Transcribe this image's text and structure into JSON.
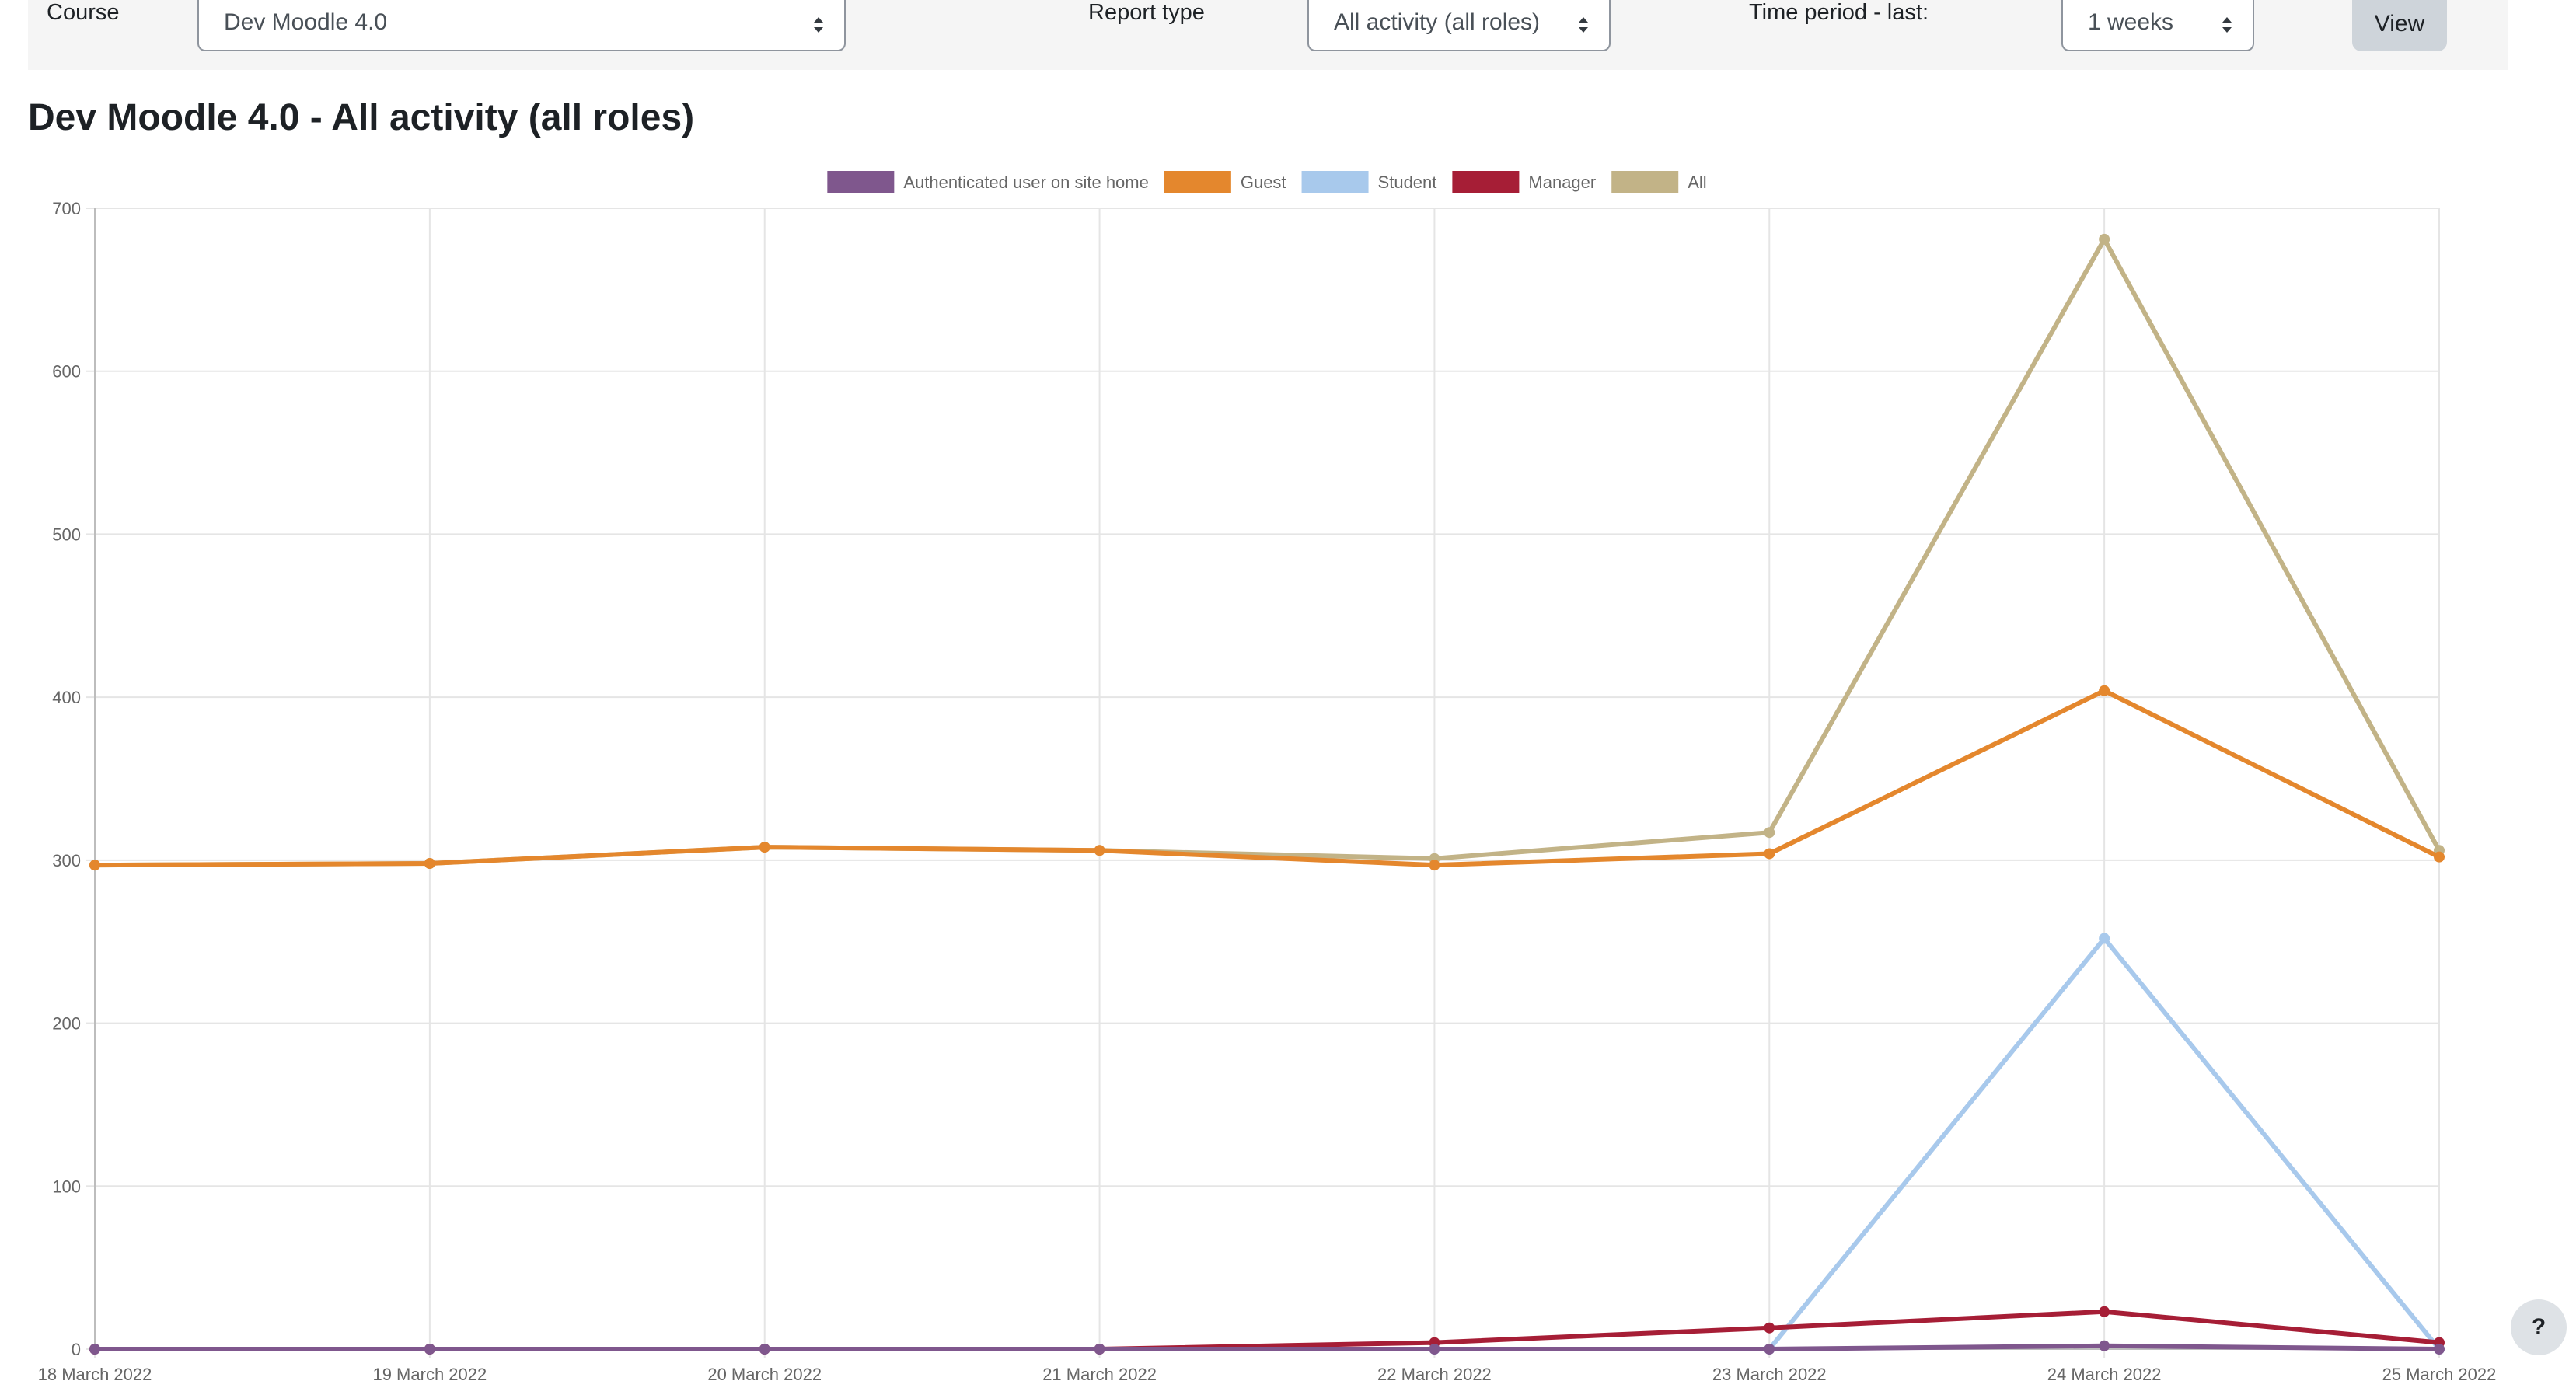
{
  "filters": {
    "course_label": "Course",
    "course_value": "Dev Moodle 4.0",
    "report_type_label": "Report type",
    "report_type_value": "All activity (all roles)",
    "time_period_label": "Time period - last:",
    "time_period_value": "1 weeks",
    "view_label": "View"
  },
  "report_title": "Dev Moodle 4.0 - All activity (all roles)",
  "help_label": "?",
  "chart_data": {
    "type": "line",
    "title": "",
    "xlabel": "",
    "ylabel": "",
    "categories": [
      "18 March 2022",
      "19 March 2022",
      "20 March 2022",
      "21 March 2022",
      "22 March 2022",
      "23 March 2022",
      "24 March 2022",
      "25 March 2022"
    ],
    "ylim": [
      0,
      700
    ],
    "yticks": [
      0,
      100,
      200,
      300,
      400,
      500,
      600,
      700
    ],
    "grid": true,
    "legend_position": "top-center",
    "series": [
      {
        "name": "Authenticated user on site home",
        "color": "#7f578d",
        "values": [
          0,
          0,
          0,
          0,
          0,
          0,
          2,
          0
        ]
      },
      {
        "name": "Guest",
        "color": "#e4872d",
        "values": [
          297,
          298,
          308,
          306,
          297,
          304,
          404,
          302
        ]
      },
      {
        "name": "Student",
        "color": "#a8c9ec",
        "values": [
          0,
          0,
          0,
          0,
          0,
          0,
          252,
          0
        ]
      },
      {
        "name": "Manager",
        "color": "#a61e36",
        "values": [
          0,
          0,
          0,
          0,
          4,
          13,
          23,
          4
        ]
      },
      {
        "name": "All",
        "color": "#c2b387",
        "values": [
          297,
          298,
          308,
          306,
          301,
          317,
          681,
          306
        ]
      }
    ]
  }
}
